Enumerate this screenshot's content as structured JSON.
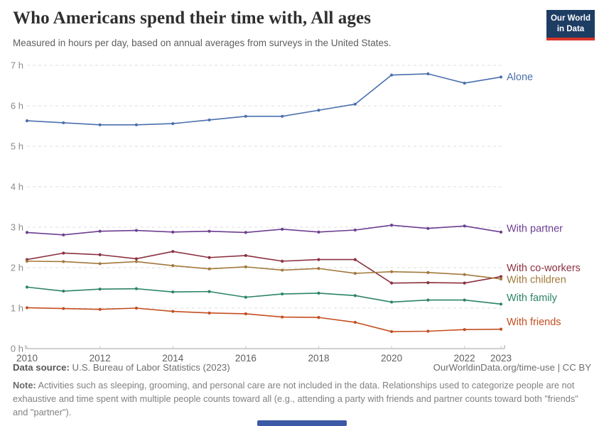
{
  "header": {
    "title": "Who Americans spend their time with, All ages",
    "subtitle": "Measured in hours per day, based on annual averages from surveys in the United States.",
    "logo": {
      "line1": "Our World",
      "line2": "in Data",
      "bg": "#1d3d63",
      "accent": "#d8352a"
    }
  },
  "chart_data": {
    "type": "line",
    "title": "Who Americans spend their time with, All ages",
    "xlabel": "",
    "ylabel": "hours per day",
    "x": [
      2010,
      2011,
      2012,
      2013,
      2014,
      2015,
      2016,
      2017,
      2018,
      2019,
      2020,
      2021,
      2022,
      2023
    ],
    "x_tick_values": [
      2010,
      2012,
      2014,
      2016,
      2018,
      2020,
      2022,
      2023
    ],
    "x_tick_labels": [
      "2010",
      "2012",
      "2014",
      "2016",
      "2018",
      "2020",
      "2022",
      "2023"
    ],
    "y_tick_labels": [
      "0 h",
      "1 h",
      "2 h",
      "3 h",
      "4 h",
      "5 h",
      "6 h",
      "7 h"
    ],
    "ylim": [
      0,
      7
    ],
    "grid": "horizontal-dashed",
    "legend": "end-of-line-labels",
    "series": [
      {
        "name": "Alone",
        "color": "#4b6fae",
        "values": [
          5.63,
          5.58,
          5.53,
          5.53,
          5.56,
          5.65,
          5.74,
          5.74,
          5.89,
          6.04,
          6.76,
          6.79,
          6.56,
          6.71
        ]
      },
      {
        "name": "With partner",
        "color": "#6d3e91",
        "values": [
          2.87,
          2.81,
          2.9,
          2.92,
          2.88,
          2.9,
          2.87,
          2.95,
          2.88,
          2.93,
          3.05,
          2.97,
          3.03,
          2.88
        ]
      },
      {
        "name": "With co-workers",
        "color": "#8b3140",
        "values": [
          2.2,
          2.36,
          2.32,
          2.22,
          2.4,
          2.25,
          2.3,
          2.16,
          2.2,
          2.2,
          1.62,
          1.63,
          1.62,
          1.78
        ]
      },
      {
        "name": "With children",
        "color": "#a2793c",
        "values": [
          2.16,
          2.15,
          2.1,
          2.15,
          2.05,
          1.97,
          2.02,
          1.94,
          1.98,
          1.86,
          1.9,
          1.88,
          1.83,
          1.72
        ]
      },
      {
        "name": "With family",
        "color": "#2c8465",
        "values": [
          1.52,
          1.42,
          1.47,
          1.48,
          1.4,
          1.41,
          1.27,
          1.35,
          1.37,
          1.31,
          1.15,
          1.2,
          1.2,
          1.1
        ]
      },
      {
        "name": "With friends",
        "color": "#c44e20",
        "values": [
          1.01,
          0.99,
          0.97,
          1.0,
          0.92,
          0.88,
          0.86,
          0.78,
          0.77,
          0.65,
          0.42,
          0.43,
          0.47,
          0.48
        ]
      }
    ]
  },
  "footer": {
    "datasource_label": "Data source:",
    "datasource": " U.S. Bureau of Labor Statistics (2023)",
    "link": "OurWorldinData.org/time-use | CC BY",
    "note_label": "Note:",
    "note": " Activities such as sleeping, grooming, and personal care are not included in the data. Relationships used to categorize people are not exhaustive and time spent with multiple people counts toward all (e.g., attending a party with friends and partner counts toward both \"friends\" and \"partner\")."
  }
}
